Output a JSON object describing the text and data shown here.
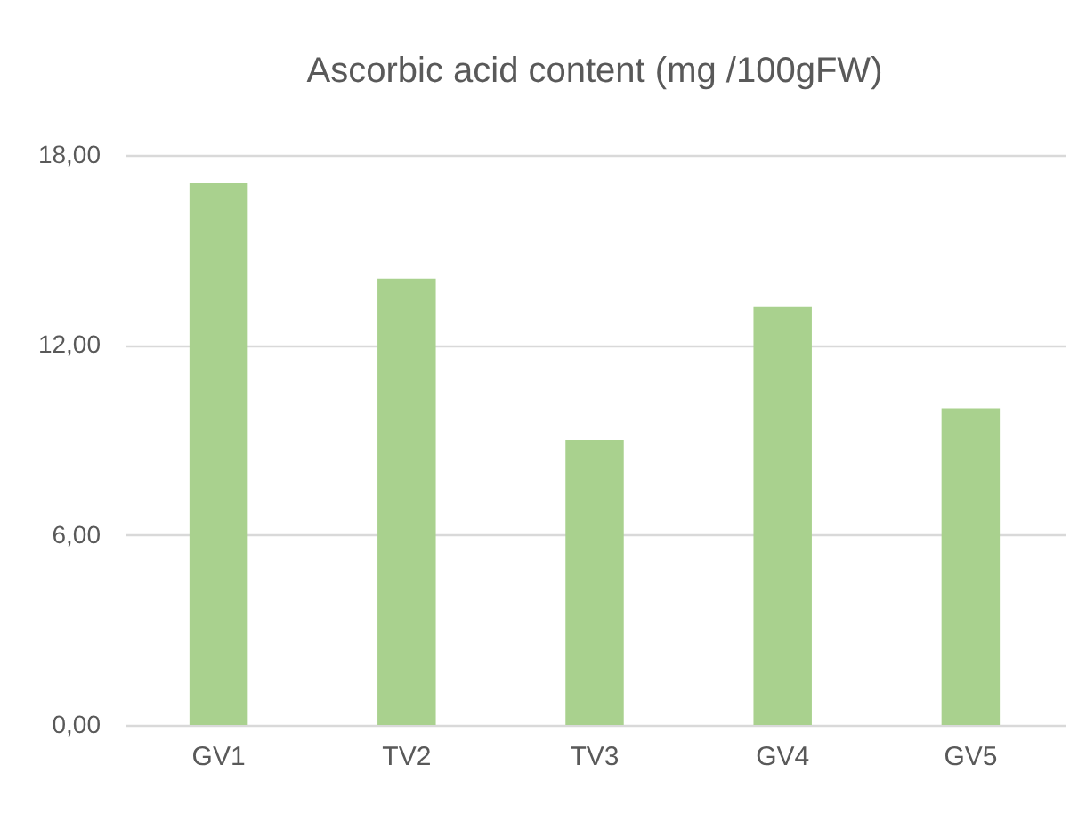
{
  "chart_data": {
    "type": "bar",
    "title": "Ascorbic acid content  (mg /100gFW)",
    "categories": [
      "GV1",
      "TV2",
      "TV3",
      "GV4",
      "GV5"
    ],
    "values": [
      17.1,
      14.1,
      9.0,
      13.2,
      10.0
    ],
    "color": "#a9d18e",
    "ylim": [
      0,
      18
    ],
    "yticks": [
      {
        "value": 0,
        "label": "0,00"
      },
      {
        "value": 6,
        "label": "6,00"
      },
      {
        "value": 12,
        "label": "12,00"
      },
      {
        "value": 18,
        "label": "18,00"
      }
    ],
    "grid": "y"
  }
}
